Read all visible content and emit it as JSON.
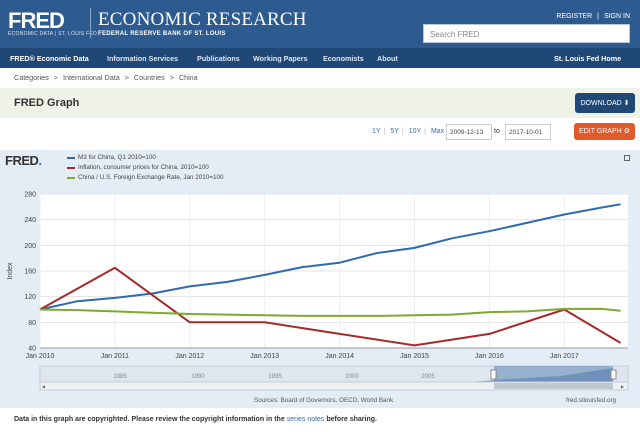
{
  "header": {
    "logo": "FRED",
    "logo_tagline": "ECONOMIC DATA | ST. LOUIS FED",
    "site_title": "ECONOMIC RESEARCH",
    "site_subtitle": "FEDERAL RESERVE BANK OF ST. LOUIS",
    "register": "REGISTER",
    "sign_in": "SIGN IN",
    "auth_sep": "|",
    "search_placeholder": "Search FRED"
  },
  "nav": {
    "items": [
      "FRED® Economic Data",
      "Information Services",
      "Publications",
      "Working Papers",
      "Economists",
      "About"
    ],
    "right": "St. Louis Fed Home"
  },
  "breadcrumb": [
    "Categories",
    ">",
    "International Data",
    ">",
    "Countries",
    ">",
    "China"
  ],
  "page": {
    "title": "FRED Graph",
    "download_label": "DOWNLOAD ⬇",
    "edit_label": "EDIT GRAPH ⚙"
  },
  "range": {
    "options": [
      "1Y",
      "5Y",
      "10Y",
      "Max"
    ],
    "separator": "|",
    "start": "2009-12-13",
    "to_label": "to",
    "end": "2017-10-01"
  },
  "chart_header": {
    "brand": "FRED",
    "brand_mark": "."
  },
  "chart_data": {
    "type": "line",
    "ylabel": "Index",
    "ylim": [
      40,
      280
    ],
    "yticks": [
      40,
      80,
      120,
      160,
      200,
      240,
      280
    ],
    "xticks": [
      "Jan 2010",
      "Jan 2011",
      "Jan 2012",
      "Jan 2013",
      "Jan 2014",
      "Jan 2015",
      "Jan 2016",
      "Jan 2017"
    ],
    "grid": true,
    "legend_position": "top-left",
    "series": [
      {
        "name": "M3 for China, Q1 2010=100",
        "color": "#2f6aad",
        "x": [
          2010.0,
          2010.5,
          2011.0,
          2011.5,
          2012.0,
          2012.5,
          2013.0,
          2013.5,
          2014.0,
          2014.5,
          2015.0,
          2015.5,
          2016.0,
          2016.5,
          2017.0,
          2017.5,
          2017.75
        ],
        "values": [
          100,
          113,
          118,
          125,
          136,
          143,
          154,
          166,
          173,
          188,
          196,
          211,
          222,
          235,
          248,
          259,
          264
        ]
      },
      {
        "name": "Inflation, consumer prices for China, 2010=100",
        "color": "#a62a2a",
        "x": [
          2010.0,
          2011.0,
          2012.0,
          2013.0,
          2014.0,
          2015.0,
          2016.0,
          2017.0,
          2017.75
        ],
        "values": [
          100,
          165,
          80,
          80,
          62,
          44,
          62,
          100,
          48
        ]
      },
      {
        "name": "China / U.S. Foreign Exchange Rate, Jan 2010=100",
        "color": "#7aaa2e",
        "x": [
          2010.0,
          2010.5,
          2011.0,
          2011.5,
          2012.0,
          2012.5,
          2013.0,
          2013.5,
          2014.0,
          2014.5,
          2015.0,
          2015.5,
          2016.0,
          2016.5,
          2017.0,
          2017.5,
          2017.75
        ],
        "values": [
          100,
          99,
          97,
          95,
          93,
          92,
          91,
          90,
          90,
          90,
          91,
          92,
          96,
          97,
          101,
          101,
          98
        ]
      }
    ]
  },
  "navigator": {
    "labels": [
      "1985",
      "1990",
      "1995",
      "2000",
      "2005"
    ]
  },
  "footer": {
    "source": "Sources: Board of Governors, OECD, World Bank",
    "fred_url": "fred.stlouisfed.org",
    "note_prefix": "Data in this graph are copyrighted. Please review the copyright information in the",
    "note_link": "series notes",
    "note_suffix": "before sharing."
  }
}
